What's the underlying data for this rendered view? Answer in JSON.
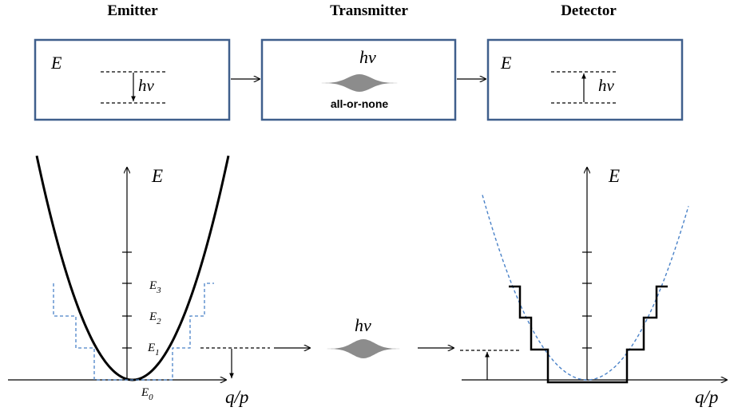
{
  "colors": {
    "box_border": "#3f5f8c",
    "quantum_steps": "#4a82c8",
    "wave_packet": "#8c8c8c",
    "classical": "#000000"
  },
  "headers": {
    "emitter": "Emitter",
    "transmitter": "Transmitter",
    "detector": "Detector"
  },
  "emitter_box": {
    "energy_label": "E",
    "photon_label": "hν"
  },
  "transmitter_box": {
    "photon_label": "hν",
    "caption": "all-or-none"
  },
  "detector_box": {
    "energy_label": "E",
    "photon_label": "hν"
  },
  "left_plot": {
    "axis_y_label": "E",
    "axis_x_label": "q/p",
    "levels": [
      {
        "name": "E",
        "sub": "0"
      },
      {
        "name": "E",
        "sub": "1"
      },
      {
        "name": "E",
        "sub": "2"
      },
      {
        "name": "E",
        "sub": "3"
      }
    ]
  },
  "middle": {
    "photon_label": "hν"
  },
  "right_plot": {
    "axis_y_label": "E",
    "axis_x_label": "q/p"
  },
  "icons": [
    "wave-packet-icon",
    "arrow-right-icon",
    "arrow-down-icon",
    "arrow-up-icon"
  ]
}
